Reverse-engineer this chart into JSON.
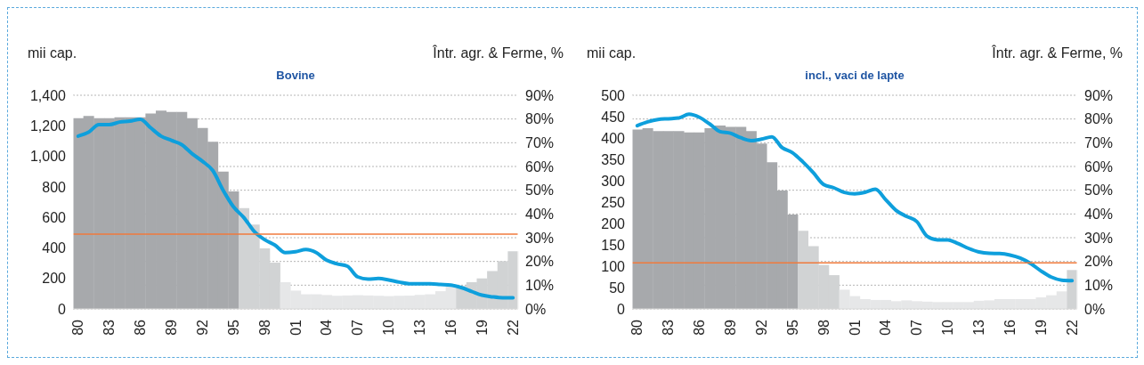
{
  "chart_data": [
    {
      "type": "bar",
      "title": "Bovine",
      "ylabel": "mii cap.",
      "y2label": "Într. agr. & Ferme, %",
      "categories": [
        "80",
        null,
        null,
        "83",
        null,
        null,
        "86",
        null,
        null,
        "89",
        null,
        null,
        "92",
        null,
        null,
        "95",
        null,
        null,
        "98",
        null,
        null,
        "01",
        null,
        null,
        "04",
        null,
        null,
        "07",
        null,
        null,
        "10",
        null,
        null,
        "13",
        null,
        null,
        "16",
        null,
        null,
        "19",
        null,
        null,
        "22"
      ],
      "series": [
        {
          "colors": [
            "#a7a9ac",
            "#a7a9ac",
            "#a7a9ac",
            "#a7a9ac",
            "#a7a9ac",
            "#a7a9ac",
            "#a7a9ac",
            "#a7a9ac",
            "#a7a9ac",
            "#a7a9ac",
            "#a7a9ac",
            "#a7a9ac",
            "#a7a9ac",
            "#a7a9ac",
            "#a7a9ac",
            "#a7a9ac",
            "#d1d3d4",
            "#d1d3d4",
            "#d1d3d4",
            "#d1d3d4",
            "#e6e7e8",
            "#e6e7e8",
            "#e6e7e8",
            "#e6e7e8",
            "#e6e7e8",
            "#e6e7e8",
            "#e6e7e8",
            "#e6e7e8",
            "#e6e7e8",
            "#e6e7e8",
            "#e6e7e8",
            "#e6e7e8",
            "#e6e7e8",
            "#e6e7e8",
            "#e6e7e8",
            "#e6e7e8",
            "#e6e7e8",
            "#d1d3d4",
            "#d1d3d4",
            "#d1d3d4",
            "#d1d3d4",
            "#d1d3d4",
            "#d1d3d4"
          ],
          "values": [
            1250,
            1265,
            1250,
            1250,
            1255,
            1255,
            1255,
            1280,
            1300,
            1290,
            1290,
            1250,
            1185,
            1095,
            900,
            770,
            660,
            552,
            397,
            303,
            175,
            120,
            96,
            96,
            91,
            86,
            88,
            90,
            88,
            86,
            84,
            86,
            87,
            92,
            96,
            116,
            146,
            150,
            175,
            200,
            248,
            313,
            378
          ]
        },
        {
          "type": "line",
          "axis": "y2",
          "color": "#0e9fdc",
          "values": [
            72.8,
            74.4,
            77.6,
            77.6,
            78.7,
            79.1,
            79.9,
            76.3,
            72.8,
            71,
            69.2,
            65.4,
            62.2,
            58.3,
            50,
            43,
            38.5,
            32.7,
            29.2,
            26.9,
            23.7,
            24.1,
            25,
            23.7,
            20.5,
            19,
            18,
            13.5,
            12.6,
            12.8,
            12.2,
            11.3,
            10.6,
            10.6,
            10.6,
            10.3,
            10,
            9,
            7.4,
            5.8,
            5.1,
            4.7,
            4.7
          ]
        }
      ],
      "ylim": [
        0,
        1400
      ],
      "yticks": [
        0,
        200,
        400,
        600,
        800,
        {
          "value": 1000,
          "label": "1,000"
        },
        {
          "value": 1200,
          "label": "1,200"
        },
        {
          "value": 1400,
          "label": "1,400"
        }
      ],
      "y2lim": [
        0,
        90
      ],
      "y2ticks": [
        {
          "value": 0,
          "label": "0%"
        },
        {
          "value": 10,
          "label": "10%"
        },
        {
          "value": 20,
          "label": "20%"
        },
        {
          "value": 30,
          "label": "30%"
        },
        {
          "value": 40,
          "label": "40%"
        },
        {
          "value": 50,
          "label": "50%"
        },
        {
          "value": 60,
          "label": "60%"
        },
        {
          "value": 70,
          "label": "70%"
        },
        {
          "value": 80,
          "label": "80%"
        },
        {
          "value": 90,
          "label": "90%"
        }
      ],
      "ref_lines": [
        {
          "axis": "y",
          "value": 490,
          "color": "#f07a3c"
        }
      ],
      "grid": "y2",
      "legend": false,
      "line_style": "solid",
      "marker": "none"
    },
    {
      "type": "bar",
      "title": "incl., vaci de lapte",
      "ylabel": "mii cap.",
      "y2label": "Într. agr. & Ferme, %",
      "categories": [
        "80",
        null,
        null,
        "83",
        null,
        null,
        "86",
        null,
        null,
        "89",
        null,
        null,
        "92",
        null,
        null,
        "95",
        null,
        null,
        "98",
        null,
        null,
        "01",
        null,
        null,
        "04",
        null,
        null,
        "07",
        null,
        null,
        "10",
        null,
        null,
        "13",
        null,
        null,
        "16",
        null,
        null,
        "19",
        null,
        null,
        "22"
      ],
      "series": [
        {
          "colors": [
            "#a7a9ac",
            "#a7a9ac",
            "#a7a9ac",
            "#a7a9ac",
            "#a7a9ac",
            "#a7a9ac",
            "#a7a9ac",
            "#a7a9ac",
            "#a7a9ac",
            "#a7a9ac",
            "#a7a9ac",
            "#a7a9ac",
            "#a7a9ac",
            "#a7a9ac",
            "#a7a9ac",
            "#a7a9ac",
            "#d1d3d4",
            "#d1d3d4",
            "#d1d3d4",
            "#d1d3d4",
            "#e6e7e8",
            "#e6e7e8",
            "#e6e7e8",
            "#e6e7e8",
            "#e6e7e8",
            "#e6e7e8",
            "#e6e7e8",
            "#e6e7e8",
            "#e6e7e8",
            "#e6e7e8",
            "#e6e7e8",
            "#e6e7e8",
            "#e6e7e8",
            "#e6e7e8",
            "#e6e7e8",
            "#e6e7e8",
            "#e6e7e8",
            "#e6e7e8",
            "#e6e7e8",
            "#e6e7e8",
            "#e6e7e8",
            "#e6e7e8",
            "#d1d3d4"
          ],
          "values": [
            420,
            423,
            416,
            416,
            416,
            413,
            413,
            423,
            429,
            426,
            426,
            416,
            387,
            343,
            277,
            221,
            183,
            147,
            103,
            79,
            45,
            30,
            23,
            21,
            21,
            18,
            20,
            18,
            17,
            16,
            16,
            16,
            16,
            19,
            20,
            23,
            23,
            23,
            23,
            27,
            32,
            41,
            91
          ]
        },
        {
          "type": "line",
          "axis": "y2",
          "color": "#0e9fdc",
          "values": [
            77.2,
            78.8,
            79.8,
            80.1,
            80.4,
            82,
            80.7,
            77.9,
            74.7,
            74,
            72.1,
            70.9,
            71.5,
            72.5,
            67.9,
            65.8,
            61.9,
            57.4,
            52.4,
            51,
            49.1,
            48.5,
            49.1,
            50.4,
            46,
            41.5,
            39,
            36.8,
            30.6,
            29.1,
            29.1,
            27.5,
            25.5,
            24,
            23.4,
            23.3,
            22.7,
            21.4,
            19.1,
            16,
            13.4,
            12.1,
            11.9
          ]
        }
      ],
      "ylim": [
        0,
        500
      ],
      "yticks": [
        0,
        50,
        100,
        150,
        200,
        250,
        300,
        350,
        400,
        450,
        500
      ],
      "y2lim": [
        0,
        90
      ],
      "y2ticks": [
        {
          "value": 0,
          "label": "0%"
        },
        {
          "value": 10,
          "label": "10%"
        },
        {
          "value": 20,
          "label": "20%"
        },
        {
          "value": 30,
          "label": "30%"
        },
        {
          "value": 40,
          "label": "40%"
        },
        {
          "value": 50,
          "label": "50%"
        },
        {
          "value": 60,
          "label": "60%"
        },
        {
          "value": 70,
          "label": "70%"
        },
        {
          "value": 80,
          "label": "80%"
        },
        {
          "value": 90,
          "label": "90%"
        }
      ],
      "ref_lines": [
        {
          "axis": "y",
          "value": 108,
          "color": "#f07a3c"
        }
      ],
      "grid": "y2",
      "legend": false,
      "line_style": "solid",
      "marker": "none"
    }
  ]
}
